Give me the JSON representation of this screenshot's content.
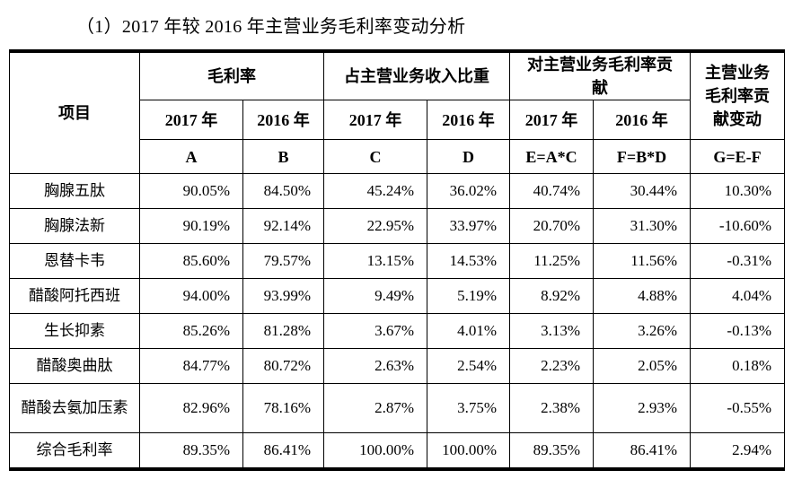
{
  "page": {
    "title": "（1）2017 年较 2016 年主营业务毛利率变动分析"
  },
  "table": {
    "corner_label": "项目",
    "groups": [
      {
        "label": "毛利率"
      },
      {
        "label": "占主营业务收入比重"
      },
      {
        "label": "对主营业务毛利率贡献"
      }
    ],
    "change_col_label": "主营业务毛利率贡献变动",
    "year_headers": [
      "2017 年",
      "2016 年",
      "2017 年",
      "2016 年",
      "2017 年",
      "2016 年"
    ],
    "formula_headers": [
      "A",
      "B",
      "C",
      "D",
      "E=A*C",
      "F=B*D"
    ],
    "change_col_formula": "G=E-F",
    "rows": [
      {
        "item": "胸腺五肽",
        "values": [
          "90.05%",
          "84.50%",
          "45.24%",
          "36.02%",
          "40.74%",
          "30.44%",
          "10.30%"
        ]
      },
      {
        "item": "胸腺法新",
        "values": [
          "90.19%",
          "92.14%",
          "22.95%",
          "33.97%",
          "20.70%",
          "31.30%",
          "-10.60%"
        ]
      },
      {
        "item": "恩替卡韦",
        "values": [
          "85.60%",
          "79.57%",
          "13.15%",
          "14.53%",
          "11.25%",
          "11.56%",
          "-0.31%"
        ]
      },
      {
        "item": "醋酸阿托西班",
        "values": [
          "94.00%",
          "93.99%",
          "9.49%",
          "5.19%",
          "8.92%",
          "4.88%",
          "4.04%"
        ]
      },
      {
        "item": "生长抑素",
        "values": [
          "85.26%",
          "81.28%",
          "3.67%",
          "4.01%",
          "3.13%",
          "3.26%",
          "-0.13%"
        ]
      },
      {
        "item": "醋酸奥曲肽",
        "values": [
          "84.77%",
          "80.72%",
          "2.63%",
          "2.54%",
          "2.23%",
          "2.05%",
          "0.18%"
        ]
      },
      {
        "item": "醋酸去氨加压素",
        "values": [
          "82.96%",
          "78.16%",
          "2.87%",
          "3.75%",
          "2.38%",
          "2.93%",
          "-0.55%"
        ]
      },
      {
        "item": "综合毛利率",
        "values": [
          "89.35%",
          "86.41%",
          "100.00%",
          "100.00%",
          "89.35%",
          "86.41%",
          "2.94%"
        ]
      }
    ]
  }
}
